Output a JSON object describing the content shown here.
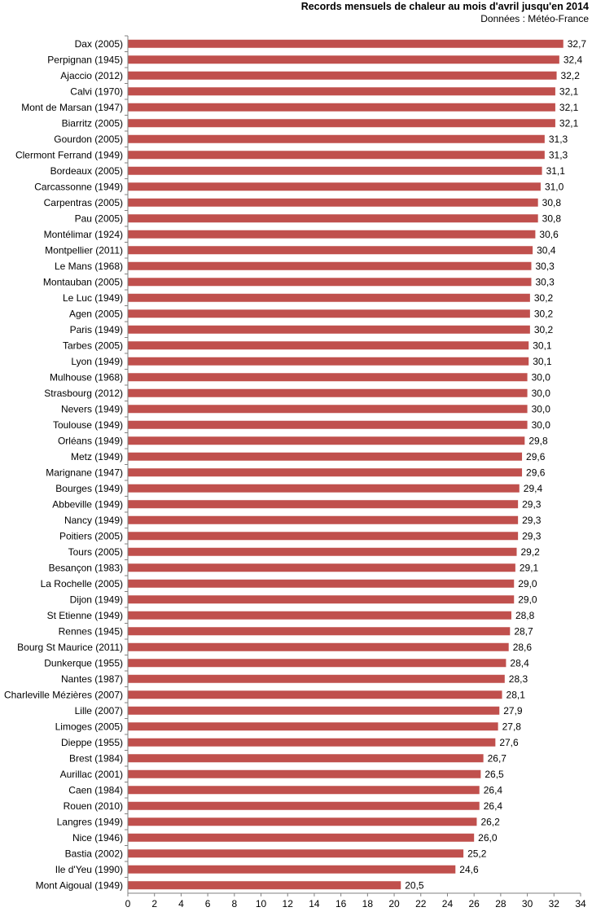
{
  "chart_data": {
    "type": "bar",
    "orientation": "horizontal",
    "title": "Records mensuels de chaleur au mois d'avril jusqu'en 2014",
    "subtitle": "Données : Météo-France",
    "categories": [
      "Dax (2005)",
      "Perpignan (1945)",
      "Ajaccio (2012)",
      "Calvi (1970)",
      "Mont de Marsan (1947)",
      "Biarritz (2005)",
      "Gourdon (2005)",
      "Clermont Ferrand (1949)",
      "Bordeaux (2005)",
      "Carcassonne (1949)",
      "Carpentras (2005)",
      "Pau (2005)",
      "Montélimar (1924)",
      "Montpellier (2011)",
      "Le Mans (1968)",
      "Montauban (2005)",
      "Le Luc (1949)",
      "Agen (2005)",
      "Paris (1949)",
      "Tarbes (2005)",
      "Lyon (1949)",
      "Mulhouse (1968)",
      "Strasbourg (2012)",
      "Nevers (1949)",
      "Toulouse (1949)",
      "Orléans (1949)",
      "Metz (1949)",
      "Marignane (1947)",
      "Bourges (1949)",
      "Abbeville (1949)",
      "Nancy (1949)",
      "Poitiers (2005)",
      "Tours (2005)",
      "Besançon (1983)",
      "La Rochelle (2005)",
      "Dijon (1949)",
      "St Etienne (1949)",
      "Rennes (1945)",
      "Bourg St Maurice (2011)",
      "Dunkerque (1955)",
      "Nantes (1987)",
      "Charleville Mézières (2007)",
      "Lille (2007)",
      "Limoges (2005)",
      "Dieppe (1955)",
      "Brest (1984)",
      "Aurillac (2001)",
      "Caen (1984)",
      "Rouen (2010)",
      "Langres (1949)",
      "Nice (1946)",
      "Bastia (2002)",
      "Ile d'Yeu (1990)",
      "Mont Aigoual (1949)"
    ],
    "values": [
      32.7,
      32.4,
      32.2,
      32.1,
      32.1,
      32.1,
      31.3,
      31.3,
      31.1,
      31.0,
      30.8,
      30.8,
      30.6,
      30.4,
      30.3,
      30.3,
      30.2,
      30.2,
      30.2,
      30.1,
      30.1,
      30.0,
      30.0,
      30.0,
      30.0,
      29.8,
      29.6,
      29.6,
      29.4,
      29.3,
      29.3,
      29.3,
      29.2,
      29.1,
      29.0,
      29.0,
      28.8,
      28.7,
      28.6,
      28.4,
      28.3,
      28.1,
      27.9,
      27.8,
      27.6,
      26.7,
      26.5,
      26.4,
      26.4,
      26.2,
      26.0,
      25.2,
      24.6,
      20.5
    ],
    "value_labels": [
      "32,7",
      "32,4",
      "32,2",
      "32,1",
      "32,1",
      "32,1",
      "31,3",
      "31,3",
      "31,1",
      "31,0",
      "30,8",
      "30,8",
      "30,6",
      "30,4",
      "30,3",
      "30,3",
      "30,2",
      "30,2",
      "30,2",
      "30,1",
      "30,1",
      "30,0",
      "30,0",
      "30,0",
      "30,0",
      "29,8",
      "29,6",
      "29,6",
      "29,4",
      "29,3",
      "29,3",
      "29,3",
      "29,2",
      "29,1",
      "29,0",
      "29,0",
      "28,8",
      "28,7",
      "28,6",
      "28,4",
      "28,3",
      "28,1",
      "27,9",
      "27,8",
      "27,6",
      "26,7",
      "26,5",
      "26,4",
      "26,4",
      "26,2",
      "26,0",
      "25,2",
      "24,6",
      "20,5"
    ],
    "xlim": [
      0,
      34
    ],
    "xticks": [
      "0",
      "2",
      "4",
      "6",
      "8",
      "10",
      "12",
      "14",
      "16",
      "18",
      "20",
      "22",
      "24",
      "26",
      "28",
      "30",
      "32",
      "34"
    ],
    "grid": false,
    "legend": "none",
    "bar_color": "#c0504d"
  }
}
